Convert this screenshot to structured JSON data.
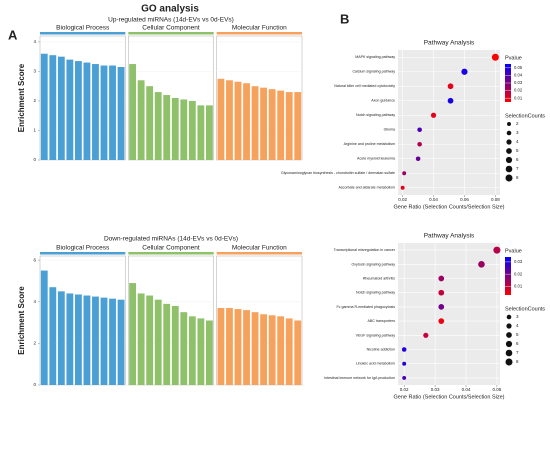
{
  "figure": {
    "title": "GO analysis",
    "panel_labels": [
      "A",
      "B"
    ]
  },
  "chart_data": [
    {
      "type": "facet_bar",
      "title": "Up-regulated miRNAs (14d-EVs vs 0d-EVs)",
      "ylabel": "Enrichment Score",
      "ylim": [
        0,
        4.2
      ],
      "yticks": [
        0,
        1,
        2,
        3,
        4
      ],
      "facets": [
        {
          "name": "Biological Process",
          "color": "#4a9fd4",
          "categories": [
            null,
            null,
            null,
            null,
            null,
            null,
            null,
            null,
            null,
            null
          ],
          "values": [
            3.6,
            3.55,
            3.5,
            3.4,
            3.35,
            3.3,
            3.25,
            3.2,
            3.2,
            3.15
          ]
        },
        {
          "name": "Cellular Component",
          "color": "#8fc06a",
          "categories": [
            null,
            null,
            null,
            null,
            null,
            null,
            null,
            null,
            null,
            null
          ],
          "values": [
            3.25,
            2.7,
            2.5,
            2.3,
            2.2,
            2.1,
            2.05,
            2.0,
            1.85,
            1.85
          ]
        },
        {
          "name": "Molecular Function",
          "color": "#f7a25c",
          "categories": [
            null,
            null,
            null,
            null,
            null,
            null,
            null,
            null,
            null,
            null
          ],
          "values": [
            2.75,
            2.7,
            2.65,
            2.6,
            2.5,
            2.45,
            2.4,
            2.35,
            2.3,
            2.3
          ]
        }
      ]
    },
    {
      "type": "facet_bar",
      "title": "Down-regulated miRNAs (14d-EVs vs 0d-EVs)",
      "ylabel": "Enrichment Score",
      "ylim": [
        0,
        6.2
      ],
      "yticks": [
        0,
        2,
        4,
        6
      ],
      "facets": [
        {
          "name": "Biological Process",
          "color": "#4a9fd4",
          "categories": [
            null,
            null,
            null,
            null,
            null,
            null,
            null,
            null,
            null,
            null
          ],
          "values": [
            5.5,
            4.7,
            4.5,
            4.4,
            4.35,
            4.3,
            4.25,
            4.2,
            4.15,
            4.1
          ]
        },
        {
          "name": "Cellular Component",
          "color": "#8fc06a",
          "categories": [
            null,
            null,
            null,
            null,
            null,
            null,
            null,
            null,
            null,
            null
          ],
          "values": [
            4.9,
            4.4,
            4.3,
            4.1,
            3.9,
            3.8,
            3.5,
            3.3,
            3.2,
            3.1
          ]
        },
        {
          "name": "Molecular Function",
          "color": "#f7a25c",
          "categories": [
            null,
            null,
            null,
            null,
            null,
            null,
            null,
            null,
            null,
            null
          ],
          "values": [
            3.7,
            3.7,
            3.65,
            3.6,
            3.5,
            3.4,
            3.35,
            3.3,
            3.2,
            3.1
          ]
        }
      ]
    },
    {
      "type": "dot",
      "title": "Pathway Analysis",
      "xlabel": "Gene Ratio (Selection Counts/Selection Size)",
      "categories": [
        "MAPK signaling pathway",
        "Calcium signaling pathway",
        "Natural killer cell mediated cytotoxicity",
        "Axon guidance",
        "Notch signaling pathway",
        "Glioma",
        "Arginine and proline metabolism",
        "Acute myeloid leukemia",
        "Glycosaminoglycan biosynthesis - chondroitin sulfate / dermatan sulfate",
        "Ascorbate and aldarate metabolism"
      ],
      "values": [
        0.08,
        0.06,
        0.051,
        0.051,
        0.04,
        0.031,
        0.031,
        0.03,
        0.021,
        0.02
      ],
      "counts": [
        8,
        6,
        5,
        5,
        4,
        3,
        3,
        3,
        2,
        2
      ],
      "pvalues": [
        0.005,
        0.05,
        0.01,
        0.05,
        0.01,
        0.04,
        0.02,
        0.035,
        0.025,
        0.01
      ],
      "xlim": [
        0.017,
        0.083
      ],
      "xticks": [
        0.02,
        0.04,
        0.06,
        0.08
      ],
      "color_title": "Pvalue",
      "clim": [
        0.005,
        0.055
      ],
      "cticks": [
        0.01,
        0.02,
        0.03,
        0.04,
        0.05
      ],
      "color_low": "#ff0000",
      "color_high": "#0000ff",
      "size_title": "SelectionCounts",
      "size_legend": [
        2,
        3,
        4,
        5,
        6,
        7,
        8
      ]
    },
    {
      "type": "dot",
      "title": "Pathway Analysis",
      "xlabel": "Gene Ratio (Selection Counts/Selection Size)",
      "categories": [
        "Transcriptional misregulation in cancer",
        "Oxytocin signaling pathway",
        "Rheumatoid arthritis",
        "Notch signaling pathway",
        "Fc gamma R-mediated phagocytosis",
        "ABC transporters",
        "VEGF signaling pathway",
        "Nicotine addiction",
        "Linoleic acid metabolism",
        "Intestinal immune network for IgA production"
      ],
      "values": [
        0.05,
        0.045,
        0.032,
        0.032,
        0.032,
        0.032,
        0.027,
        0.02,
        0.02,
        0.02
      ],
      "counts": [
        8,
        7,
        5,
        5,
        5,
        5,
        4,
        3,
        2,
        2
      ],
      "pvalues": [
        0.012,
        0.015,
        0.015,
        0.01,
        0.02,
        0.005,
        0.01,
        0.03,
        0.03,
        0.025
      ],
      "xlim": [
        0.018,
        0.051
      ],
      "xticks": [
        0.02,
        0.03,
        0.04,
        0.05
      ],
      "color_title": "Pvalue",
      "clim": [
        0.003,
        0.034
      ],
      "cticks": [
        0.01,
        0.02,
        0.03
      ],
      "color_low": "#ff0000",
      "color_high": "#0000ff",
      "size_title": "SelectionCounts",
      "size_legend": [
        3,
        4,
        5,
        6,
        7,
        8
      ]
    }
  ]
}
